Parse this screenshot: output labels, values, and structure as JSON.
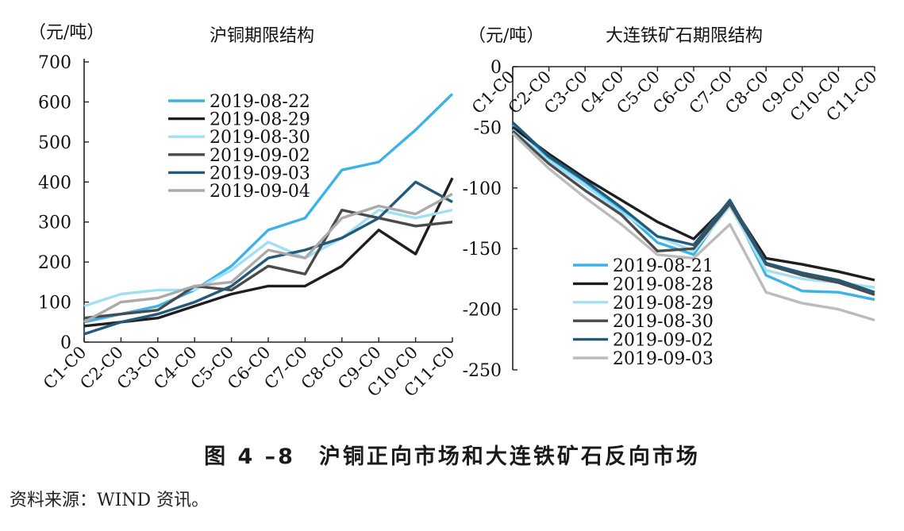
{
  "caption": "图 4 –8　沪铜正向市场和大连铁矿石反向市场",
  "source": "资料来源：WIND 资讯。",
  "chart_data": [
    {
      "type": "line",
      "title": "沪铜期限结构",
      "ylabel": "（元/吨）",
      "ylim": [
        0,
        700
      ],
      "yticks": [
        0,
        100,
        200,
        300,
        400,
        500,
        600,
        700
      ],
      "categories": [
        "C1-C0",
        "C2-C0",
        "C3-C0",
        "C4-C0",
        "C5-C0",
        "C6-C0",
        "C7-C0",
        "C8-C0",
        "C9-C0",
        "C10-C0",
        "C11-C0"
      ],
      "legend_position": "top-left",
      "grid": false,
      "series": [
        {
          "name": "2019-08-22",
          "color": "#3bb3e6",
          "values": [
            50,
            70,
            90,
            130,
            190,
            280,
            310,
            430,
            450,
            530,
            620
          ]
        },
        {
          "name": "2019-08-29",
          "color": "#1e1e1e",
          "values": [
            40,
            50,
            60,
            90,
            120,
            140,
            140,
            190,
            280,
            220,
            410
          ]
        },
        {
          "name": "2019-08-30",
          "color": "#9fe0f5",
          "values": [
            90,
            120,
            130,
            130,
            180,
            250,
            210,
            260,
            330,
            310,
            330
          ]
        },
        {
          "name": "2019-09-02",
          "color": "#4a4a4a",
          "values": [
            60,
            70,
            80,
            140,
            130,
            190,
            170,
            330,
            310,
            290,
            300
          ]
        },
        {
          "name": "2019-09-03",
          "color": "#235a7a",
          "values": [
            20,
            50,
            70,
            100,
            140,
            210,
            230,
            260,
            310,
            400,
            350
          ]
        },
        {
          "name": "2019-09-04",
          "color": "#aaaaaa",
          "values": [
            50,
            100,
            110,
            140,
            150,
            230,
            210,
            310,
            340,
            320,
            370
          ]
        }
      ]
    },
    {
      "type": "line",
      "title": "大连铁矿石期限结构",
      "ylabel": "（元/吨）",
      "ylim": [
        -250,
        0
      ],
      "yticks": [
        0,
        -50,
        -100,
        -150,
        -200,
        -250
      ],
      "categories": [
        "C1-C0",
        "C2-C0",
        "C3-C0",
        "C4-C0",
        "C5-C0",
        "C6-C0",
        "C7-C0",
        "C8-C0",
        "C9-C0",
        "C10-C0",
        "C11-C0"
      ],
      "legend_position": "bottom-left",
      "grid": false,
      "series": [
        {
          "name": "2019-08-21",
          "color": "#3bb3e6",
          "values": [
            -48,
            -75,
            -95,
            -118,
            -145,
            -155,
            -112,
            -172,
            -185,
            -186,
            -192
          ]
        },
        {
          "name": "2019-08-28",
          "color": "#1e1e1e",
          "values": [
            -50,
            -72,
            -92,
            -110,
            -128,
            -142,
            -112,
            -158,
            -163,
            -169,
            -176
          ]
        },
        {
          "name": "2019-08-29",
          "color": "#9fe0f5",
          "values": [
            -52,
            -78,
            -98,
            -120,
            -140,
            -152,
            -115,
            -168,
            -175,
            -178,
            -182
          ]
        },
        {
          "name": "2019-08-30",
          "color": "#4a4a4a",
          "values": [
            -53,
            -80,
            -102,
            -122,
            -152,
            -150,
            -113,
            -163,
            -172,
            -178,
            -188
          ]
        },
        {
          "name": "2019-09-02",
          "color": "#235a7a",
          "values": [
            -46,
            -74,
            -94,
            -116,
            -140,
            -147,
            -110,
            -162,
            -170,
            -176,
            -186
          ]
        },
        {
          "name": "2019-09-03",
          "color": "#bbbbbb",
          "values": [
            -55,
            -84,
            -108,
            -130,
            -155,
            -158,
            -130,
            -186,
            -195,
            -200,
            -209
          ]
        }
      ]
    }
  ]
}
